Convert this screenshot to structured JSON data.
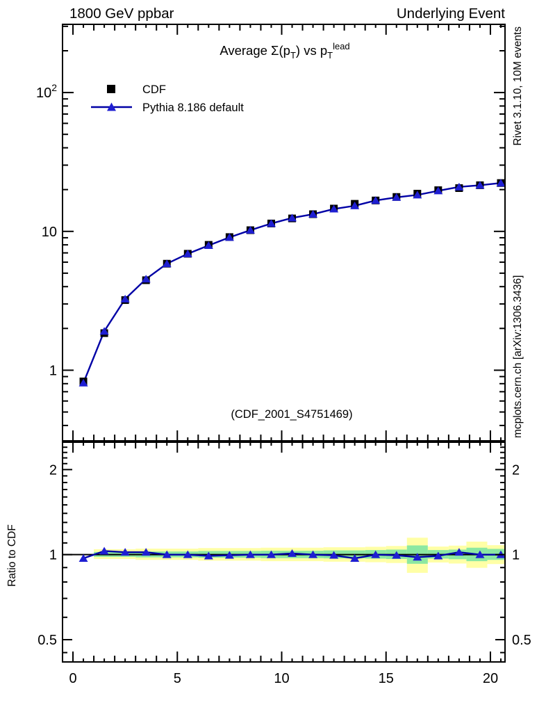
{
  "header": {
    "left": "1800 GeV ppbar",
    "right": "Underlying Event"
  },
  "title": {
    "full": "Average Σ(p_T) vs p_T^lead",
    "prefix": "Average Σ(p",
    "sub_a": "T",
    "mid": ") vs p",
    "sub_b": "T",
    "sup": "lead"
  },
  "legend": {
    "items": [
      {
        "label": "CDF",
        "marker": "black-square"
      },
      {
        "label": "Pythia 8.186 default",
        "marker": "blue-line-triangle"
      }
    ]
  },
  "watermark": "(CDF_2001_S4751469)",
  "side_notes": {
    "right_top": "Rivet 3.1.10,  10M events",
    "right_bottom": "mcplots.cern.ch [arXiv:1306.3436]"
  },
  "ratio_panel": {
    "ylabel": "Ratio to CDF"
  },
  "colors": {
    "black": "#000000",
    "blue_line": "#0000a6",
    "blue_marker": "#1e1ed2",
    "band_yellow": "#ffffa6",
    "band_green": "#8ce8a2",
    "gray_text": "#8c8c8c",
    "watermark": "#b2b2b2"
  },
  "chart_data": {
    "type": "line",
    "title": "Average Σ(p_T) vs p_T^lead",
    "xlabel": "",
    "ylabel": "",
    "legend_position": "top-left-inside",
    "grid": false,
    "x": [
      0.5,
      1.5,
      2.5,
      3.5,
      4.5,
      5.5,
      6.5,
      7.5,
      8.5,
      9.5,
      10.5,
      11.5,
      12.5,
      13.5,
      14.5,
      15.5,
      16.5,
      17.5,
      18.5,
      19.5,
      20.5
    ],
    "series": [
      {
        "name": "CDF",
        "marker": "square",
        "color": "#000000",
        "values": [
          0.83,
          1.85,
          3.2,
          4.45,
          5.85,
          6.9,
          8.0,
          9.1,
          10.2,
          11.4,
          12.4,
          13.3,
          14.6,
          15.8,
          16.7,
          17.7,
          18.7,
          19.8,
          20.5,
          21.5,
          22.3
        ]
      },
      {
        "name": "Pythia 8.186 default",
        "marker": "triangle",
        "color": "#1e1ed2",
        "values": [
          0.81,
          1.91,
          3.26,
          4.54,
          5.85,
          6.9,
          7.92,
          9.06,
          10.2,
          11.4,
          12.5,
          13.3,
          14.5,
          15.3,
          16.7,
          17.6,
          18.3,
          19.6,
          20.9,
          21.5,
          22.3
        ]
      }
    ],
    "ratio": {
      "name": "Pythia 8.186 default / CDF",
      "values": [
        0.97,
        1.03,
        1.02,
        1.02,
        1.0,
        1.0,
        0.99,
        0.995,
        1.0,
        1.0,
        1.01,
        1.0,
        0.995,
        0.97,
        1.0,
        0.995,
        0.98,
        0.99,
        1.02,
        1.0,
        1.0
      ],
      "bands_format": "[x_lo, x_hi, yellow_lo, yellow_hi, green_lo, green_hi]",
      "bands": [
        [
          1,
          3,
          0.965,
          1.045,
          0.982,
          1.022
        ],
        [
          3,
          6,
          0.958,
          1.05,
          0.978,
          1.026
        ],
        [
          6,
          9,
          0.952,
          1.055,
          0.975,
          1.03
        ],
        [
          9,
          12,
          0.948,
          1.058,
          0.972,
          1.032
        ],
        [
          12,
          14,
          0.944,
          1.062,
          0.97,
          1.035
        ],
        [
          14,
          15,
          0.94,
          1.066,
          0.968,
          1.038
        ],
        [
          15,
          16,
          0.934,
          1.073,
          0.965,
          1.042
        ],
        [
          16,
          17,
          0.862,
          1.148,
          0.928,
          1.078
        ],
        [
          17,
          18,
          0.938,
          1.068,
          0.968,
          1.038
        ],
        [
          18,
          18.85,
          0.93,
          1.076,
          0.963,
          1.042
        ],
        [
          18.85,
          19.85,
          0.898,
          1.112,
          0.948,
          1.058
        ],
        [
          19.85,
          20.7,
          0.926,
          1.08,
          0.958,
          1.048
        ]
      ]
    },
    "axes": {
      "x": {
        "lim": [
          -0.5,
          20.7
        ],
        "major_ticks": [
          0,
          5,
          10,
          15,
          20
        ],
        "tick_labels": [
          "0",
          "5",
          "10",
          "15",
          "20"
        ],
        "minor_step": 0.5
      },
      "y_main": {
        "scale": "log",
        "lim": [
          0.31,
          310
        ],
        "major_ticks": [
          1,
          10,
          100
        ],
        "tick_labels": [
          "1",
          "10",
          "10^2"
        ]
      },
      "y_ratio": {
        "scale": "log",
        "lim": [
          0.417,
          2.5
        ],
        "major_ticks": [
          0.5,
          1,
          2
        ],
        "tick_labels": [
          "0.5",
          "1",
          "2"
        ]
      }
    }
  }
}
